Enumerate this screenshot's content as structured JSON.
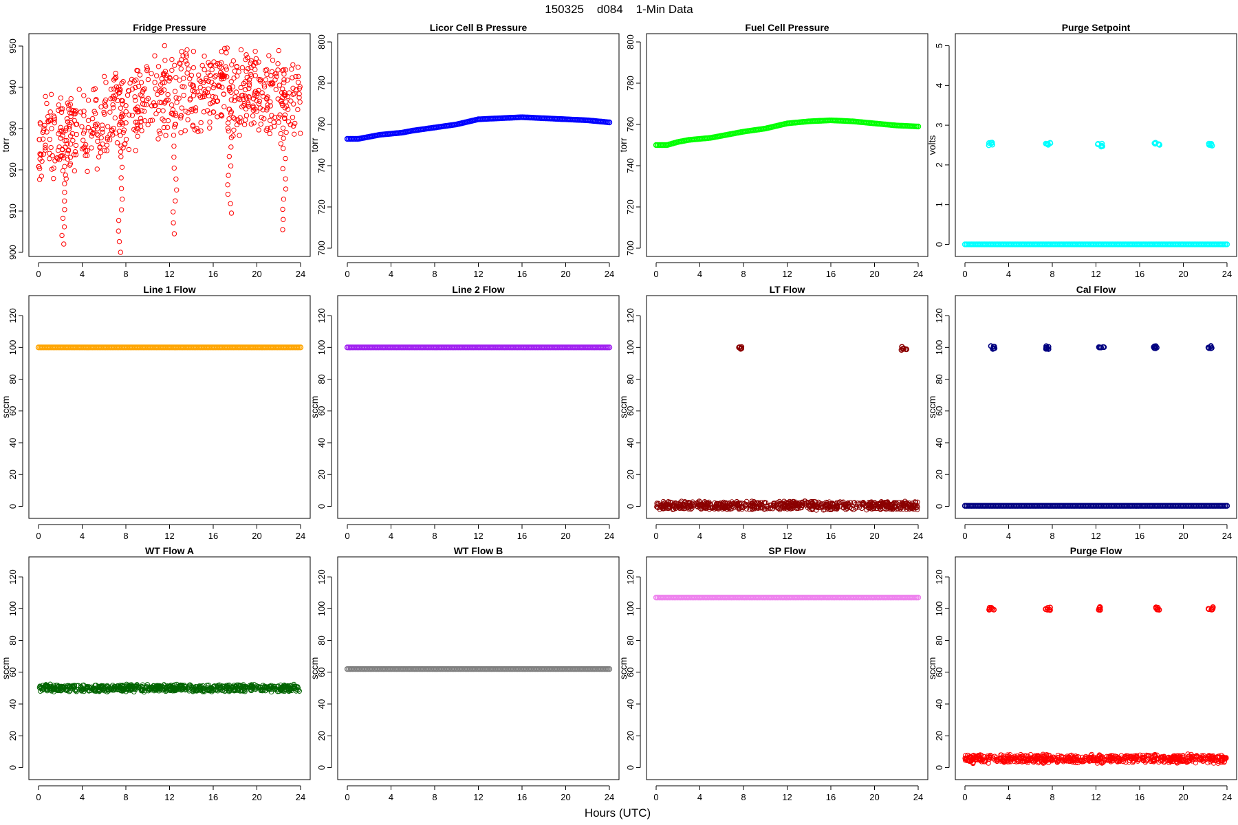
{
  "figure": {
    "title": "150325    d084    1-Min Data",
    "xlabel": "Hours (UTC)"
  },
  "chart_data": [
    {
      "type": "scatter",
      "title": "Fridge Pressure",
      "ylabel": "torr",
      "color": "#ff0000",
      "xlim": [
        0,
        24
      ],
      "ylim": [
        900,
        952
      ],
      "xticks": [
        0,
        4,
        8,
        12,
        16,
        20,
        24
      ],
      "yticks": [
        900,
        910,
        920,
        930,
        940,
        950
      ],
      "series": [
        {
          "kind": "noisy",
          "x": [
            0,
            2,
            4,
            6,
            8,
            10,
            12,
            14,
            16,
            18,
            20,
            22,
            24
          ],
          "y": [
            927,
            929,
            930,
            932,
            934,
            937,
            939,
            939,
            940,
            939,
            939,
            938,
            936
          ],
          "spread": 12,
          "dips": [
            [
              2.3,
              902
            ],
            [
              7.5,
              900
            ],
            [
              12.5,
              904.5
            ],
            [
              17.5,
              909.5
            ],
            [
              22.5,
              905.5
            ]
          ]
        }
      ]
    },
    {
      "type": "scatter",
      "title": "Licor Cell B Pressure",
      "ylabel": "torr",
      "color": "#0000ff",
      "xlim": [
        0,
        24
      ],
      "ylim": [
        698,
        802
      ],
      "xticks": [
        0,
        4,
        8,
        12,
        16,
        20,
        24
      ],
      "yticks": [
        700,
        720,
        740,
        760,
        780,
        800
      ],
      "series": [
        {
          "kind": "line",
          "x": [
            0,
            1,
            2,
            3,
            4,
            5,
            6,
            8,
            10,
            12,
            14,
            16,
            18,
            20,
            22,
            24
          ],
          "y": [
            753,
            753,
            754,
            755,
            755.5,
            756,
            757,
            758.5,
            760,
            762.5,
            763,
            763.5,
            763,
            762.5,
            762,
            761
          ]
        }
      ]
    },
    {
      "type": "scatter",
      "title": "Fuel Cell Pressure",
      "ylabel": "torr",
      "color": "#00ff00",
      "xlim": [
        0,
        24
      ],
      "ylim": [
        698,
        802
      ],
      "xticks": [
        0,
        4,
        8,
        12,
        16,
        20,
        24
      ],
      "yticks": [
        700,
        720,
        740,
        760,
        780,
        800
      ],
      "series": [
        {
          "kind": "line",
          "x": [
            0,
            1,
            2,
            3,
            4,
            5,
            6,
            8,
            10,
            12,
            14,
            16,
            18,
            20,
            22,
            24
          ],
          "y": [
            750,
            750,
            751.5,
            752.5,
            753,
            753.5,
            754.5,
            756.5,
            758,
            760.5,
            761.5,
            762,
            761.5,
            760.5,
            759.5,
            759
          ]
        }
      ]
    },
    {
      "type": "scatter",
      "title": "Purge Setpoint",
      "ylabel": "volts",
      "color": "#00ffff",
      "xlim": [
        0,
        24
      ],
      "ylim": [
        -0.2,
        5.2
      ],
      "xticks": [
        0,
        4,
        8,
        12,
        16,
        20,
        24
      ],
      "yticks": [
        0,
        1,
        2,
        3,
        4,
        5
      ],
      "series": [
        {
          "kind": "line",
          "x": [
            0,
            24
          ],
          "y": [
            0,
            0
          ]
        },
        {
          "kind": "clusters",
          "x": [
            2.4,
            7.6,
            12.4,
            17.6,
            22.5
          ],
          "y": [
            2.52,
            2.52,
            2.5,
            2.52,
            2.5
          ]
        }
      ]
    },
    {
      "type": "scatter",
      "title": "Line 1 Flow",
      "ylabel": "sccm",
      "color": "#ffa500",
      "xlim": [
        0,
        24
      ],
      "ylim": [
        -5,
        130
      ],
      "xticks": [
        0,
        4,
        8,
        12,
        16,
        20,
        24
      ],
      "yticks": [
        0,
        20,
        40,
        60,
        80,
        100,
        120
      ],
      "series": [
        {
          "kind": "line",
          "x": [
            0,
            24
          ],
          "y": [
            100,
            100
          ]
        }
      ]
    },
    {
      "type": "scatter",
      "title": "Line 2 Flow",
      "ylabel": "sccm",
      "color": "#a020f0",
      "xlim": [
        0,
        24
      ],
      "ylim": [
        -5,
        130
      ],
      "xticks": [
        0,
        4,
        8,
        12,
        16,
        20,
        24
      ],
      "yticks": [
        0,
        20,
        40,
        60,
        80,
        100,
        120
      ],
      "series": [
        {
          "kind": "line",
          "x": [
            0,
            24
          ],
          "y": [
            100,
            100
          ]
        }
      ]
    },
    {
      "type": "scatter",
      "title": "LT Flow",
      "ylabel": "sccm",
      "color": "#8b0000",
      "xlim": [
        0,
        24
      ],
      "ylim": [
        -5,
        130
      ],
      "xticks": [
        0,
        4,
        8,
        12,
        16,
        20,
        24
      ],
      "yticks": [
        0,
        20,
        40,
        60,
        80,
        100,
        120
      ],
      "series": [
        {
          "kind": "noisy",
          "x": [
            0,
            24
          ],
          "y": [
            0.5,
            0.5
          ],
          "spread": 3,
          "dips": []
        },
        {
          "kind": "clusters",
          "x": [
            7.7,
            22.7
          ],
          "y": [
            99.5,
            99.5
          ]
        }
      ]
    },
    {
      "type": "scatter",
      "title": "Cal Flow",
      "ylabel": "sccm",
      "color": "#000080",
      "xlim": [
        0,
        24
      ],
      "ylim": [
        -5,
        130
      ],
      "xticks": [
        0,
        4,
        8,
        12,
        16,
        20,
        24
      ],
      "yticks": [
        0,
        20,
        40,
        60,
        80,
        100,
        120
      ],
      "series": [
        {
          "kind": "line",
          "x": [
            0,
            24
          ],
          "y": [
            0.3,
            0.3
          ]
        },
        {
          "kind": "clusters",
          "x": [
            2.5,
            7.6,
            12.5,
            17.5,
            22.5
          ],
          "y": [
            100,
            100,
            100,
            100,
            100
          ]
        }
      ]
    },
    {
      "type": "scatter",
      "title": "WT Flow A",
      "ylabel": "sccm",
      "color": "#006400",
      "xlim": [
        0,
        24
      ],
      "ylim": [
        -5,
        130
      ],
      "xticks": [
        0,
        4,
        8,
        12,
        16,
        20,
        24
      ],
      "yticks": [
        0,
        20,
        40,
        60,
        80,
        100,
        120
      ],
      "series": [
        {
          "kind": "noisy",
          "x": [
            0,
            24
          ],
          "y": [
            50,
            50
          ],
          "spread": 2.5,
          "dips": []
        }
      ]
    },
    {
      "type": "scatter",
      "title": "WT Flow B",
      "ylabel": "sccm",
      "color": "#808080",
      "xlim": [
        0,
        24
      ],
      "ylim": [
        -5,
        130
      ],
      "xticks": [
        0,
        4,
        8,
        12,
        16,
        20,
        24
      ],
      "yticks": [
        0,
        20,
        40,
        60,
        80,
        100,
        120
      ],
      "series": [
        {
          "kind": "line",
          "x": [
            0,
            24
          ],
          "y": [
            62,
            62
          ]
        }
      ]
    },
    {
      "type": "scatter",
      "title": "SP Flow",
      "ylabel": "sccm",
      "color": "#ee82ee",
      "xlim": [
        0,
        24
      ],
      "ylim": [
        -5,
        130
      ],
      "xticks": [
        0,
        4,
        8,
        12,
        16,
        20,
        24
      ],
      "yticks": [
        0,
        20,
        40,
        60,
        80,
        100,
        120
      ],
      "series": [
        {
          "kind": "line",
          "x": [
            0,
            24
          ],
          "y": [
            107,
            107
          ]
        }
      ]
    },
    {
      "type": "scatter",
      "title": "Purge Flow",
      "ylabel": "sccm",
      "color": "#ff0000",
      "xlim": [
        0,
        24
      ],
      "ylim": [
        -5,
        130
      ],
      "xticks": [
        0,
        4,
        8,
        12,
        16,
        20,
        24
      ],
      "yticks": [
        0,
        20,
        40,
        60,
        80,
        100,
        120
      ],
      "series": [
        {
          "kind": "noisy",
          "x": [
            0,
            24
          ],
          "y": [
            5.5,
            5.5
          ],
          "spread": 3,
          "dips": []
        },
        {
          "kind": "clusters",
          "x": [
            2.4,
            7.6,
            12.4,
            17.6,
            22.5
          ],
          "y": [
            100,
            100,
            100,
            100,
            100
          ]
        }
      ]
    }
  ]
}
